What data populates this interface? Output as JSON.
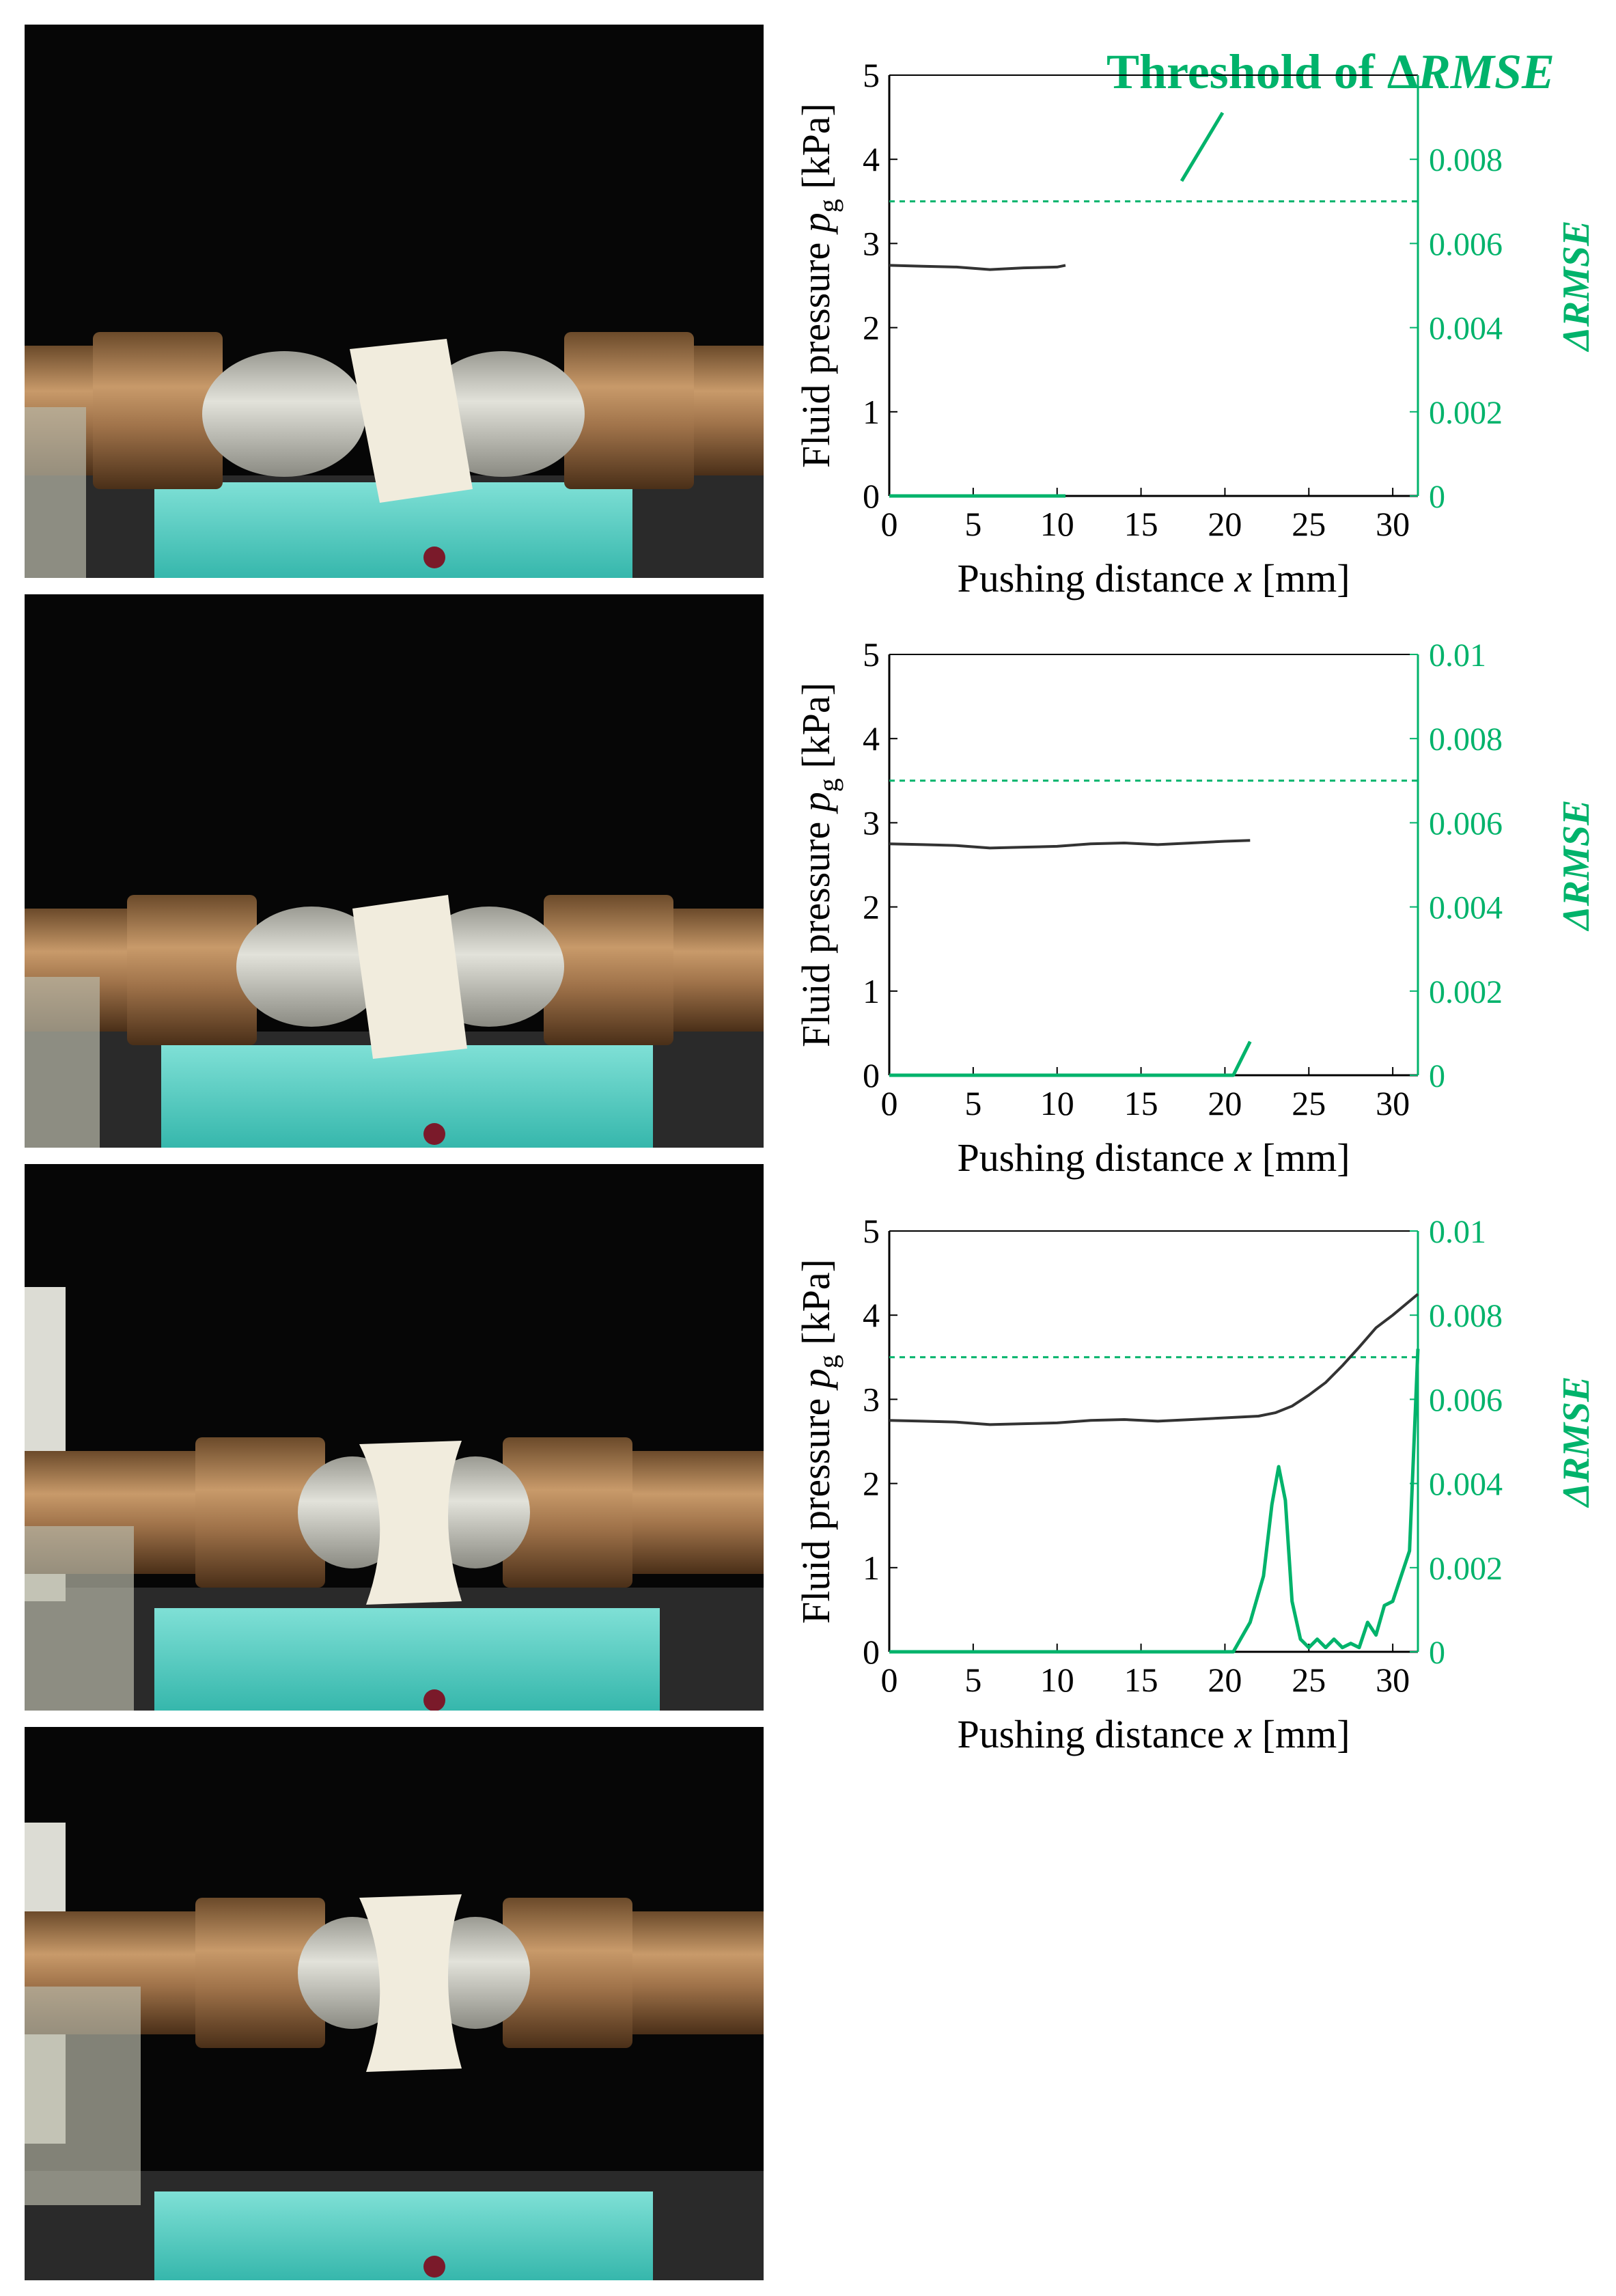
{
  "annotation": {
    "threshold_prefix": "Threshold of Δ",
    "threshold_symbol": "RMSE"
  },
  "photos": [
    {
      "label": "photo-stage-1"
    },
    {
      "label": "photo-stage-2"
    },
    {
      "label": "photo-stage-3"
    },
    {
      "label": "photo-stage-4"
    }
  ],
  "colors": {
    "pressure": "#333333",
    "rmse": "#00b36b",
    "threshold": "#00b36b",
    "axis": "#000000",
    "right_axis": "#00b36b"
  },
  "chart_data": [
    {
      "type": "line",
      "xlabel_prefix": "Pushing distance ",
      "xlabel_var": "x",
      "xlabel_unit": " [mm]",
      "ylabel_prefix": "Fluid pressure ",
      "ylabel_var": "p",
      "ylabel_sub": "g",
      "ylabel_unit": " [kPa]",
      "y2label": "ΔRMSE",
      "xlim": [
        0,
        31.5
      ],
      "ylim": [
        0,
        5
      ],
      "y2lim": [
        0,
        0.01
      ],
      "xticks": [
        "0",
        "5",
        "10",
        "15",
        "20",
        "25",
        "30"
      ],
      "yticks": [
        "0",
        "1",
        "2",
        "3",
        "4",
        "5"
      ],
      "y2ticks": [
        "0",
        "0.002",
        "0.004",
        "0.006",
        "0.008"
      ],
      "threshold_y2": 0.007,
      "series": [
        {
          "axis": "left",
          "x": [
            0,
            2,
            4,
            6,
            8,
            10,
            10.5
          ],
          "y": [
            2.74,
            2.73,
            2.72,
            2.69,
            2.71,
            2.72,
            2.74
          ]
        },
        {
          "axis": "right",
          "x": [
            0,
            10.5
          ],
          "y": [
            0,
            0
          ]
        }
      ]
    },
    {
      "type": "line",
      "xlabel_prefix": "Pushing distance ",
      "xlabel_var": "x",
      "xlabel_unit": " [mm]",
      "ylabel_prefix": "Fluid pressure ",
      "ylabel_var": "p",
      "ylabel_sub": "g",
      "ylabel_unit": " [kPa]",
      "y2label": "ΔRMSE",
      "xlim": [
        0,
        31.5
      ],
      "ylim": [
        0,
        5
      ],
      "y2lim": [
        0,
        0.01
      ],
      "xticks": [
        "0",
        "5",
        "10",
        "15",
        "20",
        "25",
        "30"
      ],
      "yticks": [
        "0",
        "1",
        "2",
        "3",
        "4",
        "5"
      ],
      "y2ticks": [
        "0",
        "0.002",
        "0.004",
        "0.006",
        "0.008",
        "0.01"
      ],
      "threshold_y2": 0.007,
      "series": [
        {
          "axis": "left",
          "x": [
            0,
            2,
            4,
            6,
            8,
            10,
            12,
            14,
            16,
            18,
            20,
            21.5
          ],
          "y": [
            2.75,
            2.74,
            2.73,
            2.7,
            2.71,
            2.72,
            2.75,
            2.76,
            2.74,
            2.76,
            2.78,
            2.79
          ]
        },
        {
          "axis": "right",
          "x": [
            0,
            20.5,
            21.5
          ],
          "y": [
            0,
            0,
            0.0008
          ]
        }
      ]
    },
    {
      "type": "line",
      "xlabel_prefix": "Pushing distance ",
      "xlabel_var": "x",
      "xlabel_unit": " [mm]",
      "ylabel_prefix": "Fluid pressure ",
      "ylabel_var": "p",
      "ylabel_sub": "g",
      "ylabel_unit": " [kPa]",
      "y2label": "ΔRMSE",
      "xlim": [
        0,
        31.5
      ],
      "ylim": [
        0,
        5
      ],
      "y2lim": [
        0,
        0.01
      ],
      "xticks": [
        "0",
        "5",
        "10",
        "15",
        "20",
        "25",
        "30"
      ],
      "yticks": [
        "0",
        "1",
        "2",
        "3",
        "4",
        "5"
      ],
      "y2ticks": [
        "0",
        "0.002",
        "0.004",
        "0.006",
        "0.008",
        "0.01"
      ],
      "threshold_y2": 0.007,
      "series": [
        {
          "axis": "left",
          "x": [
            0,
            2,
            4,
            6,
            8,
            10,
            12,
            14,
            16,
            18,
            20,
            22,
            23,
            24,
            25,
            26,
            27,
            28,
            29,
            30,
            31.5
          ],
          "y": [
            2.75,
            2.74,
            2.73,
            2.7,
            2.71,
            2.72,
            2.75,
            2.76,
            2.74,
            2.76,
            2.78,
            2.8,
            2.84,
            2.92,
            3.05,
            3.2,
            3.4,
            3.62,
            3.85,
            4.0,
            4.25
          ]
        },
        {
          "axis": "right",
          "x": [
            0,
            20.5,
            21.5,
            22.3,
            22.8,
            23.2,
            23.6,
            24.0,
            24.5,
            25.0,
            25.5,
            26.0,
            26.5,
            27.0,
            27.5,
            28.0,
            28.5,
            29.0,
            29.5,
            30.0,
            30.5,
            31.0,
            31.5
          ],
          "y": [
            0,
            0,
            0.0007,
            0.0018,
            0.0035,
            0.0044,
            0.0036,
            0.0012,
            0.0003,
            0.0001,
            0.0003,
            0.0001,
            0.0003,
            0.0001,
            0.0002,
            0.0001,
            0.0007,
            0.0004,
            0.0011,
            0.0012,
            0.0018,
            0.0024,
            0.0072
          ]
        }
      ]
    }
  ]
}
